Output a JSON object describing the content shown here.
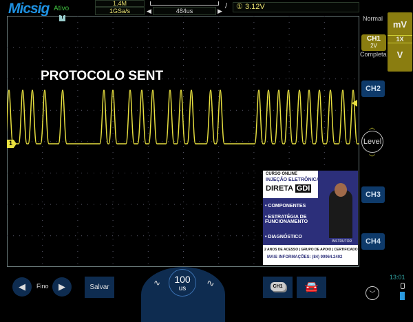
{
  "header": {
    "brand": "Micsig",
    "status": "Ativo",
    "memory_depth": "1.4M",
    "sample_rate": "1GSa/s",
    "time_offset": "484us",
    "trigger_channel": "①",
    "trigger_level": "3.12V"
  },
  "screen": {
    "annotation": "PROTOCOLO SENT",
    "channel_marker": "1",
    "trigger_marker": "T"
  },
  "right_panel": {
    "trigger_mode": "Normal",
    "unit_top": "mV",
    "probe": "1X",
    "unit_bottom": "V",
    "ch1_label": "CH1",
    "ch1_scale": "2V",
    "ch1_mode": "Completa",
    "ch2": "CH2",
    "level": "Level",
    "ch3": "CH3",
    "ch4": "CH4"
  },
  "bottom": {
    "fine_label": "Fino",
    "save": "Salvar",
    "timebase_value": "100",
    "timebase_unit": "us",
    "ch1_stack": "CH1",
    "time": "13:01"
  },
  "ad": {
    "line1": "CURSO ONLINE",
    "line2": "INJEÇÃO ELETRÔNICA",
    "line3a": "DIRETA",
    "line3b": "GDI",
    "b1": "• COMPONENTES",
    "b2": "• ESTRATÉGIA DE FUNCIONAMENTO",
    "b3": "• DIAGNÓSTICO",
    "footer1": "2 ANOS DE ACESSO | GRUPO DE APOIO | CERTIFICADO",
    "footer2": "MAIS INFORMAÇÕES: (84) 99964.2402",
    "role": "INSTRUTOR"
  },
  "colors": {
    "trace": "#e8e040",
    "accent_blue": "#1e90e0",
    "button_blue": "#0e2c50",
    "channel_yellow": "#8a7d10"
  }
}
